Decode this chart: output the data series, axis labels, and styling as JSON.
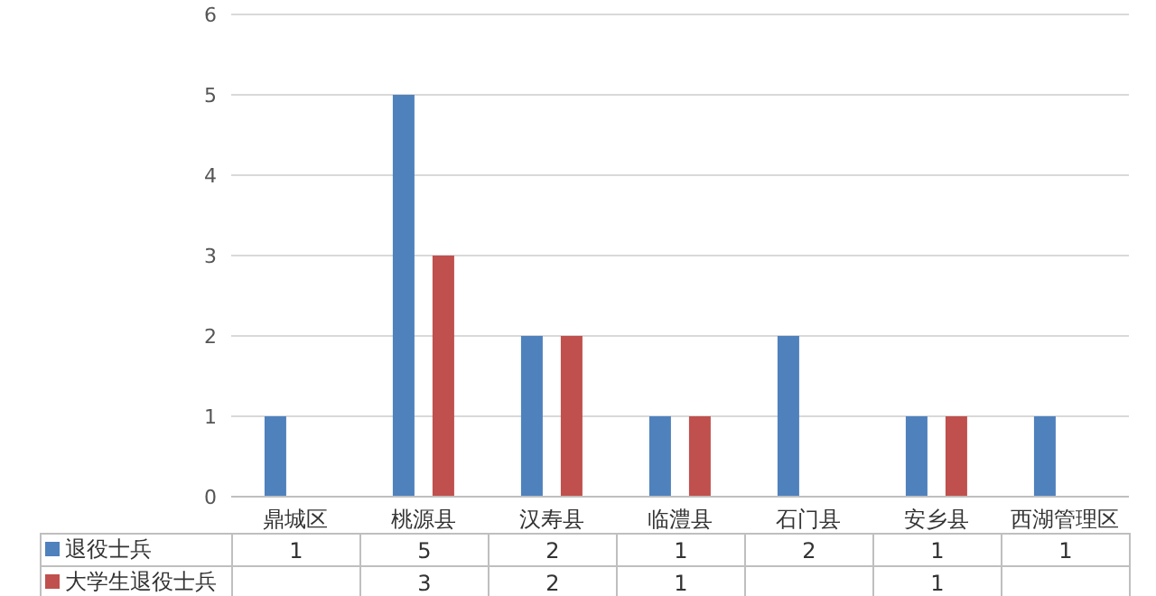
{
  "chart_data": {
    "type": "bar",
    "categories": [
      "鼎城区",
      "桃源县",
      "汉寿县",
      "临澧县",
      "石门县",
      "安乡县",
      "西湖管理区"
    ],
    "series": [
      {
        "name": "退役士兵",
        "color": "#4f81bd",
        "values": [
          1,
          5,
          2,
          1,
          2,
          1,
          1
        ]
      },
      {
        "name": "大学生退役士兵",
        "color": "#c0504d",
        "values": [
          null,
          3,
          2,
          1,
          null,
          1,
          null
        ]
      }
    ],
    "ylim": [
      0,
      6
    ],
    "yticks": [
      0,
      1,
      2,
      3,
      4,
      5,
      6
    ],
    "grid": "y",
    "legend": "bottom left",
    "data_labels": true
  }
}
